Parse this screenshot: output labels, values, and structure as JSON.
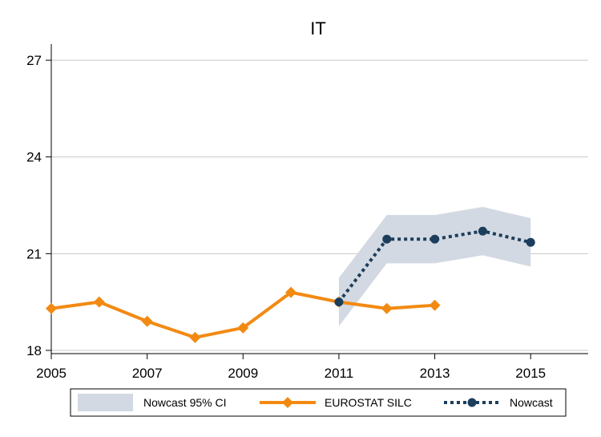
{
  "chart_data": {
    "type": "line",
    "title": "IT",
    "xlabel": "",
    "ylabel": "",
    "x_ticks": [
      2005,
      2007,
      2009,
      2011,
      2013,
      2015
    ],
    "y_ticks": [
      18,
      21,
      24,
      27
    ],
    "xlim": [
      2005,
      2016.2
    ],
    "ylim": [
      17.9,
      27.5
    ],
    "grid": "horizontal",
    "legend_position": "bottom",
    "colors": {
      "eurostat": "#f28a12",
      "nowcast": "#1c3e5c",
      "band": "#d3d9e2"
    },
    "series": [
      {
        "name": "EUROSTAT SILC",
        "style": "solid-diamond",
        "x": [
          2005,
          2006,
          2007,
          2008,
          2009,
          2010,
          2011,
          2012,
          2013
        ],
        "values": [
          19.3,
          19.5,
          18.9,
          18.4,
          18.7,
          19.8,
          19.5,
          19.3,
          19.4
        ]
      },
      {
        "name": "Nowcast",
        "style": "dotted-circle",
        "x": [
          2011,
          2012,
          2013,
          2014,
          2015
        ],
        "values": [
          19.5,
          21.45,
          21.45,
          21.7,
          21.35
        ]
      }
    ],
    "band": {
      "name": "Nowcast 95% CI",
      "x": [
        2011,
        2012,
        2013,
        2014,
        2015
      ],
      "lower": [
        18.75,
        20.7,
        20.7,
        20.95,
        20.6
      ],
      "upper": [
        20.25,
        22.2,
        22.2,
        22.45,
        22.1
      ]
    }
  }
}
